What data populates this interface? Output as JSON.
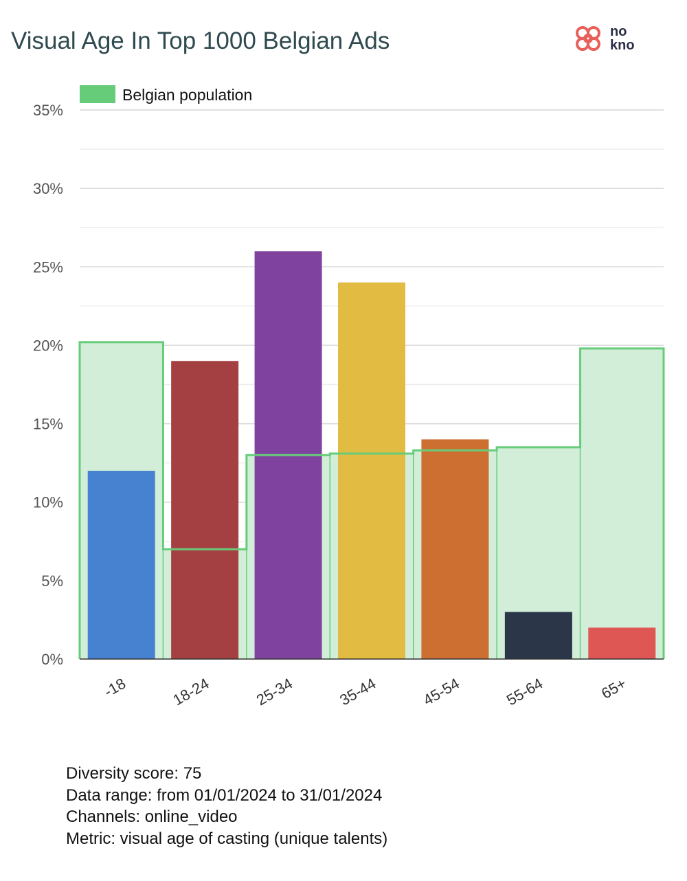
{
  "title": "Visual Age In Top 1000 Belgian Ads",
  "logo": {
    "icon": "nokno-flower-logo",
    "text_top": "no",
    "text_bottom": "kno",
    "color": "#e8605a"
  },
  "chart_data": {
    "type": "bar",
    "title": "Visual Age In Top 1000 Belgian Ads",
    "categories": [
      "-18",
      "18-24",
      "25-34",
      "35-44",
      "45-54",
      "55-64",
      "65+"
    ],
    "series": [
      {
        "values": [
          12,
          19,
          26,
          24,
          14,
          3,
          2
        ],
        "colors": [
          "#4682cf",
          "#a44042",
          "#80429f",
          "#e2bb42",
          "#cd6f31",
          "#2b3648",
          "#de5755"
        ]
      },
      {
        "name": "Belgian population",
        "type": "area-step",
        "values": [
          20.2,
          7,
          13,
          13.1,
          13.3,
          13.5,
          19.8
        ],
        "color": "#66cc7a",
        "fill": "#d2eed8"
      }
    ],
    "yticks": [
      "0%",
      "5%",
      "10%",
      "15%",
      "20%",
      "25%",
      "30%",
      "35%"
    ],
    "ylim": [
      0,
      35
    ],
    "xlabel": "",
    "ylabel": "",
    "grid": true,
    "legend": "top-left"
  },
  "footer": {
    "diversity_score": "Diversity score: 75",
    "data_range": "Data range: from 01/01/2024 to 31/01/2024",
    "channels": "Channels: online_video",
    "metric": "Metric: visual age of casting (unique talents)"
  }
}
